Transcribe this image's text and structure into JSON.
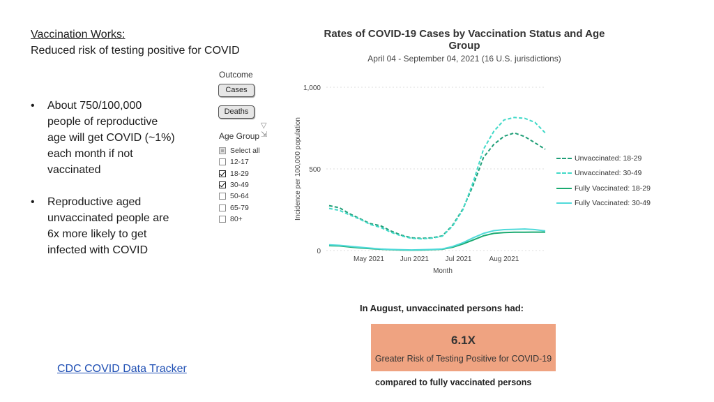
{
  "slide": {
    "title_line1": "Vaccination Works:",
    "title_line2": "Reduced risk of testing positive for COVID",
    "bullets": [
      "About 750/100,000 people of reproductive age will get COVID (~1%) each month if not vaccinated",
      "Reproductive aged unvaccinated people are 6x more likely to get infected with COVID"
    ],
    "bullet_glyph": "•",
    "link_text": "CDC COVID Data Tracker"
  },
  "filters": {
    "outcome_heading": "Outcome",
    "outcome_buttons": [
      "Cases",
      "Deaths"
    ],
    "filter_icons": "▽ ⇲",
    "age_heading": "Age Group",
    "age_groups": [
      {
        "label": "Select all",
        "state": "partial"
      },
      {
        "label": "12-17",
        "state": "unchecked"
      },
      {
        "label": "18-29",
        "state": "checked"
      },
      {
        "label": "30-49",
        "state": "checked"
      },
      {
        "label": "50-64",
        "state": "unchecked"
      },
      {
        "label": "65-79",
        "state": "unchecked"
      },
      {
        "label": "80+",
        "state": "unchecked"
      }
    ]
  },
  "callout": {
    "title": "In August, unvaccinated persons had:",
    "value": "6.1X",
    "text": "Greater Risk of Testing Positive for COVID-19",
    "footer": "compared to fully vaccinated persons",
    "color": "#efa381"
  },
  "chart_data": {
    "type": "line",
    "title": "Rates of COVID-19 Cases by Vaccination Status and Age Group",
    "subtitle": "April 04 - September 04, 2021 (16 U.S. jurisdictions)",
    "xlabel": "Month",
    "ylabel": "Incidence per 100,000 population",
    "ylim": [
      0,
      1000
    ],
    "yticks": [
      0,
      500,
      1000
    ],
    "ytick_labels": [
      "0",
      "500",
      "1,000"
    ],
    "x": [
      "2021-04-04",
      "2021-04-11",
      "2021-04-18",
      "2021-04-25",
      "2021-05-02",
      "2021-05-09",
      "2021-05-16",
      "2021-05-23",
      "2021-05-30",
      "2021-06-06",
      "2021-06-13",
      "2021-06-20",
      "2021-06-27",
      "2021-07-04",
      "2021-07-11",
      "2021-07-18",
      "2021-07-25",
      "2021-08-01",
      "2021-08-08",
      "2021-08-15",
      "2021-08-22",
      "2021-08-29"
    ],
    "xticks": [
      "2021-05-01",
      "2021-06-01",
      "2021-07-01",
      "2021-08-01"
    ],
    "xtick_labels": [
      "May 2021",
      "Jun 2021",
      "Jul 2021",
      "Aug 2021"
    ],
    "legend_position": "right",
    "grid": "horizontal dotted",
    "series": [
      {
        "name": "Unvaccinated: 18-29",
        "color": "#1f9e77",
        "dash": true,
        "values": [
          275,
          262,
          225,
          195,
          165,
          152,
          120,
          95,
          78,
          75,
          78,
          90,
          155,
          255,
          400,
          570,
          650,
          700,
          720,
          698,
          660,
          620
        ]
      },
      {
        "name": "Unvaccinated: 30-49",
        "color": "#40d9c8",
        "dash": true,
        "values": [
          258,
          246,
          218,
          192,
          160,
          142,
          112,
          90,
          75,
          72,
          76,
          88,
          150,
          250,
          420,
          620,
          730,
          800,
          815,
          810,
          785,
          720
        ]
      },
      {
        "name": "Fully Vaccinated: 18-29",
        "color": "#1aaa70",
        "dash": false,
        "values": [
          30,
          28,
          22,
          16,
          12,
          8,
          5,
          3,
          2,
          3,
          5,
          8,
          20,
          40,
          65,
          90,
          105,
          110,
          112,
          112,
          113,
          113
        ]
      },
      {
        "name": "Fully Vaccinated: 30-49",
        "color": "#50dada",
        "dash": false,
        "values": [
          35,
          32,
          26,
          20,
          15,
          10,
          7,
          5,
          4,
          5,
          7,
          10,
          25,
          48,
          78,
          105,
          122,
          128,
          130,
          132,
          128,
          120
        ]
      }
    ]
  }
}
